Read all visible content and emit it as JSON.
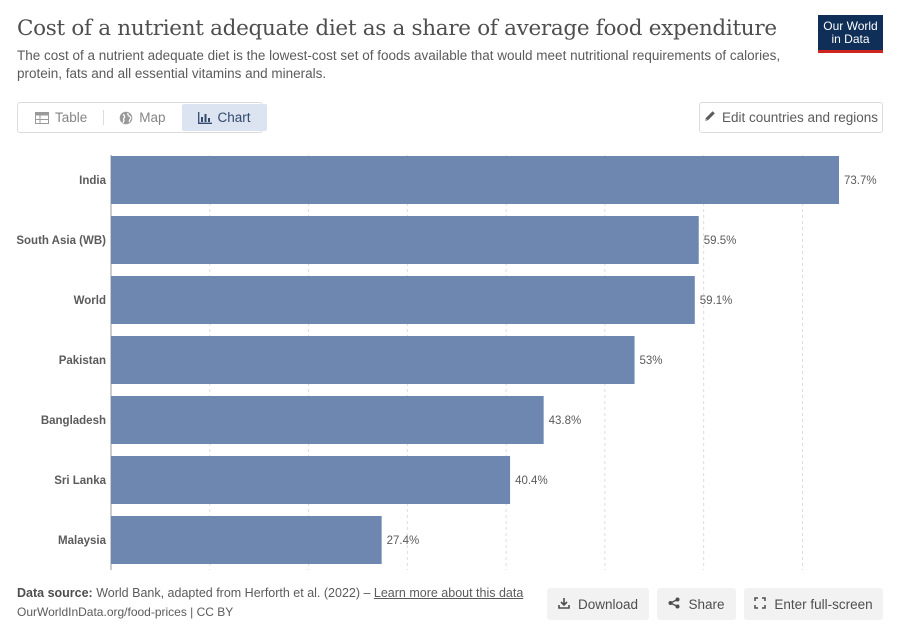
{
  "header": {
    "title": "Cost of a nutrient adequate diet as a share of average food expenditure",
    "subtitle": "The cost of a nutrient adequate diet is the lowest-cost set of foods available that would meet nutritional requirements of calories, protein, fats and all essential vitamins and minerals.",
    "logo_line1": "Our World",
    "logo_line2": "in Data"
  },
  "tabs": [
    {
      "label": "Table",
      "icon": "table-icon"
    },
    {
      "label": "Map",
      "icon": "globe-icon"
    },
    {
      "label": "Chart",
      "icon": "chart-icon",
      "active": true
    }
  ],
  "controls": {
    "edit_label": "Edit countries and regions"
  },
  "footer": {
    "source_prefix": "Data source:",
    "source_text": "World Bank, adapted from Herforth et al. (2022) – ",
    "source_link": "Learn more about this data",
    "url": "OurWorldInData.org/food-prices | CC BY",
    "download_label": "Download",
    "share_label": "Share",
    "fullscreen_label": "Enter full-screen"
  },
  "chart_data": {
    "type": "bar",
    "orientation": "horizontal",
    "categories": [
      "India",
      "South Asia (WB)",
      "World",
      "Pakistan",
      "Bangladesh",
      "Sri Lanka",
      "Malaysia"
    ],
    "values": [
      73.7,
      59.5,
      59.1,
      53,
      43.8,
      40.4,
      27.4
    ],
    "value_labels": [
      "73.7%",
      "59.5%",
      "59.1%",
      "53%",
      "43.8%",
      "40.4%",
      "27.4%"
    ],
    "unit": "%",
    "xlim": [
      0,
      75
    ],
    "grid": true,
    "bar_color": "#6d87b0"
  }
}
